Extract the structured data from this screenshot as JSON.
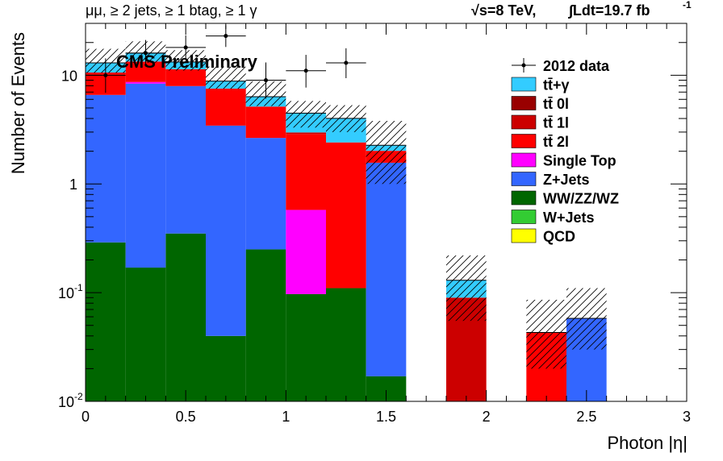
{
  "chart_data": {
    "type": "bar",
    "stacked": true,
    "title_left": "μμ, ≥ 2 jets, ≥ 1 btag, ≥ 1 γ",
    "title_energy": "√s=8 TeV,",
    "title_lumi": "∫Ldt=19.7 fb",
    "title_lumi_exp": "-1",
    "watermark": "CMS Preliminary",
    "xlabel": "Photon |η|",
    "ylabel": "Number of Events",
    "xlim": [
      0,
      3
    ],
    "ylim": [
      0.01,
      30
    ],
    "yscale": "log",
    "x_ticks": [
      {
        "v": 0,
        "label": "0"
      },
      {
        "v": 0.5,
        "label": "0.5"
      },
      {
        "v": 1,
        "label": "1"
      },
      {
        "v": 1.5,
        "label": "1.5"
      },
      {
        "v": 2,
        "label": "2"
      },
      {
        "v": 2.5,
        "label": "2.5"
      },
      {
        "v": 3,
        "label": "3"
      }
    ],
    "y_ticks": [
      {
        "v": 0.01,
        "base": "10",
        "exp": "-2"
      },
      {
        "v": 0.1,
        "base": "10",
        "exp": "-1"
      },
      {
        "v": 1,
        "base": "1",
        "exp": ""
      },
      {
        "v": 10,
        "base": "10",
        "exp": ""
      }
    ],
    "bin_edges": [
      0,
      0.2,
      0.4,
      0.6,
      0.8,
      1.0,
      1.2,
      1.4,
      1.6,
      1.8,
      2.0,
      2.2,
      2.4,
      2.6,
      2.8,
      3.0
    ],
    "series": [
      {
        "name": "QCD",
        "color": "#ffff00",
        "values": [
          0,
          0,
          0,
          0,
          0,
          0,
          0,
          0,
          0,
          0,
          0,
          0,
          0,
          0,
          0
        ]
      },
      {
        "name": "W+Jets",
        "color": "#33cc33",
        "values": [
          0,
          0,
          0,
          0,
          0,
          0,
          0,
          0,
          0,
          0,
          0,
          0,
          0,
          0,
          0
        ]
      },
      {
        "name": "WW/ZZ/WZ",
        "color": "#006600",
        "values": [
          0.29,
          0.17,
          0.35,
          0.04,
          0.25,
          0.097,
          0.11,
          0.017,
          0,
          0,
          0,
          0,
          0,
          0,
          0
        ]
      },
      {
        "name": "Z+Jets",
        "color": "#3366ff",
        "values": [
          6.3,
          8.2,
          7.6,
          3.4,
          2.4,
          0,
          0,
          1.55,
          0,
          0,
          0,
          0,
          0.058,
          0,
          0
        ]
      },
      {
        "name": "Single Top",
        "color": "#ff00ff",
        "values": [
          0,
          0.3,
          0,
          0,
          0,
          0.48,
          0,
          0,
          0,
          0,
          0,
          0,
          0,
          0,
          0
        ]
      },
      {
        "name": "tt̄ 2l",
        "color": "#ff0000",
        "values": [
          4.0,
          4.7,
          3.4,
          4.1,
          2.5,
          2.3,
          2.3,
          0.45,
          0,
          0,
          0,
          0.043,
          0,
          0,
          0
        ]
      },
      {
        "name": "tt̄ 1l",
        "color": "#cc0000",
        "values": [
          0,
          0,
          0,
          0,
          0,
          0.1,
          0,
          0,
          0,
          0.09,
          0,
          0,
          0,
          0,
          0
        ]
      },
      {
        "name": "tt̄ 0l",
        "color": "#990000",
        "values": [
          0,
          0,
          0,
          0,
          0,
          0,
          0,
          0,
          0,
          0,
          0,
          0,
          0,
          0,
          0
        ]
      },
      {
        "name": "tt̄+γ",
        "color": "#33ccff",
        "values": [
          2.4,
          2.6,
          1.9,
          1.3,
          1.2,
          1.5,
          1.6,
          0.25,
          0,
          0.04,
          0,
          0,
          0,
          0,
          0
        ]
      }
    ],
    "uncertainty_band": [
      {
        "lo": 10.5,
        "hi": 17.5
      },
      {
        "lo": 13.0,
        "hi": 20.5
      },
      {
        "lo": 11.0,
        "hi": 17.0
      },
      {
        "lo": 7.5,
        "hi": 12.0
      },
      {
        "lo": 5.2,
        "hi": 8.8
      },
      {
        "lo": 3.3,
        "hi": 5.8
      },
      {
        "lo": 3.0,
        "hi": 5.3
      },
      {
        "lo": 1.0,
        "hi": 3.8
      },
      {
        "lo": 0,
        "hi": 0
      },
      {
        "lo": 0.055,
        "hi": 0.22
      },
      {
        "lo": 0,
        "hi": 0
      },
      {
        "lo": 0.02,
        "hi": 0.086
      },
      {
        "lo": 0.03,
        "hi": 0.11
      },
      {
        "lo": 0,
        "hi": 0
      },
      {
        "lo": 0,
        "hi": 0
      }
    ],
    "data": {
      "name": "2012 data",
      "points": [
        {
          "x": 0.1,
          "y": 10,
          "elo": 3.1,
          "ehi": 4.3
        },
        {
          "x": 0.3,
          "y": 16,
          "elo": 4.0,
          "ehi": 5.1
        },
        {
          "x": 0.5,
          "y": 18,
          "elo": 4.2,
          "ehi": 5.3
        },
        {
          "x": 0.7,
          "y": 23,
          "elo": 4.8,
          "ehi": 5.9
        },
        {
          "x": 0.9,
          "y": 9,
          "elo": 2.9,
          "ehi": 4.1
        },
        {
          "x": 1.1,
          "y": 11,
          "elo": 3.3,
          "ehi": 4.4
        },
        {
          "x": 1.3,
          "y": 13,
          "elo": 3.6,
          "ehi": 4.7
        }
      ]
    },
    "legend": {
      "placement": "top-right",
      "entries": [
        {
          "label": "2012 data",
          "kind": "data"
        },
        {
          "label": "tt̄+γ",
          "color": "#33ccff"
        },
        {
          "label": "tt̄ 0l",
          "color": "#990000"
        },
        {
          "label": "tt̄ 1l",
          "color": "#cc0000"
        },
        {
          "label": "tt̄ 2l",
          "color": "#ff0000"
        },
        {
          "label": "Single Top",
          "color": "#ff00ff"
        },
        {
          "label": "Z+Jets",
          "color": "#3366ff"
        },
        {
          "label": "WW/ZZ/WZ",
          "color": "#006600"
        },
        {
          "label": "W+Jets",
          "color": "#33cc33"
        },
        {
          "label": "QCD",
          "color": "#ffff00"
        }
      ]
    }
  }
}
